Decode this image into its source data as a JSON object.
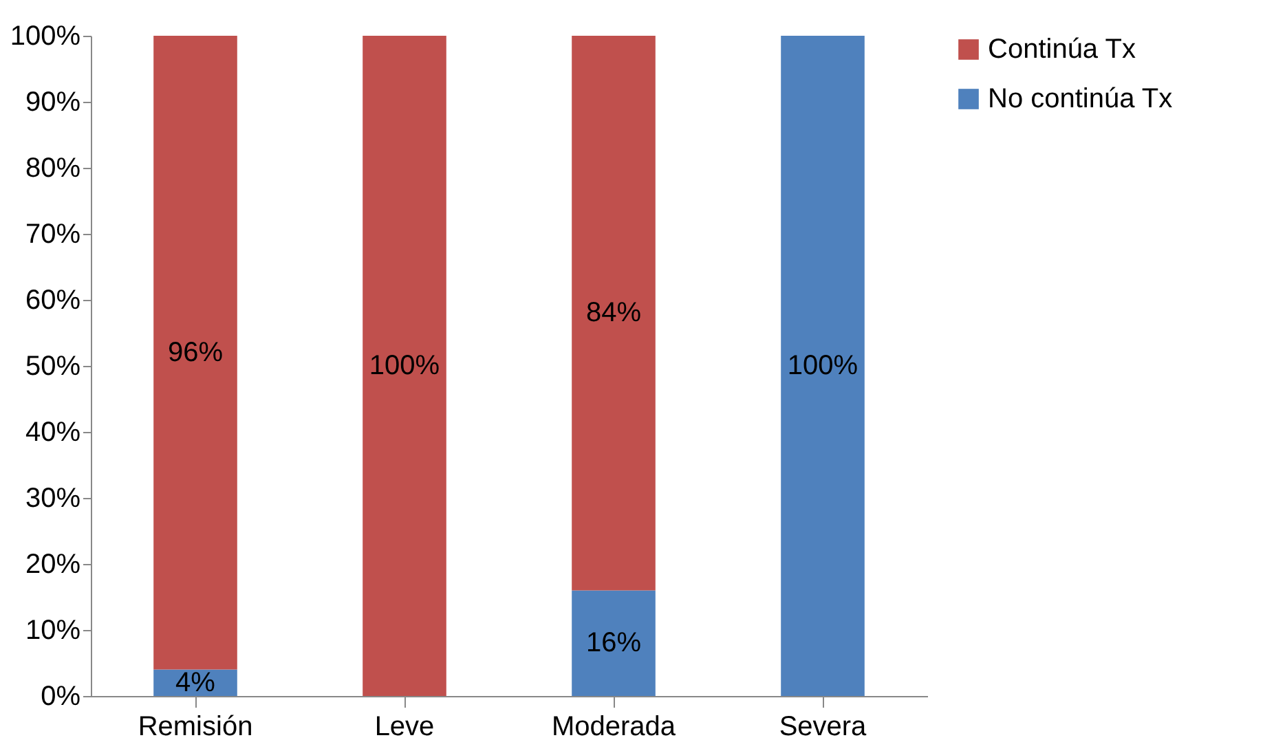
{
  "chart_data": {
    "type": "bar",
    "stacked": true,
    "categories": [
      "Remisión",
      "Leve",
      "Moderada",
      "Severa"
    ],
    "series": [
      {
        "name": "No continúa Tx",
        "color": "#4f81bd",
        "values": [
          4,
          0,
          16,
          100
        ],
        "value_labels": [
          "4%",
          null,
          "16%",
          "100%"
        ]
      },
      {
        "name": "Continúa Tx",
        "color": "#c0504d",
        "values": [
          96,
          100,
          84,
          0
        ],
        "value_labels": [
          "96%",
          "100%",
          "84%",
          null
        ]
      }
    ],
    "ylim": [
      0,
      100
    ],
    "yticks": [
      {
        "value": 0,
        "label": "0%"
      },
      {
        "value": 10,
        "label": "10%"
      },
      {
        "value": 20,
        "label": "20%"
      },
      {
        "value": 30,
        "label": "30%"
      },
      {
        "value": 40,
        "label": "40%"
      },
      {
        "value": 50,
        "label": "50%"
      },
      {
        "value": 60,
        "label": "60%"
      },
      {
        "value": 70,
        "label": "70%"
      },
      {
        "value": 80,
        "label": "80%"
      },
      {
        "value": 90,
        "label": "90%"
      },
      {
        "value": 100,
        "label": "100%"
      }
    ],
    "legend": "right"
  }
}
